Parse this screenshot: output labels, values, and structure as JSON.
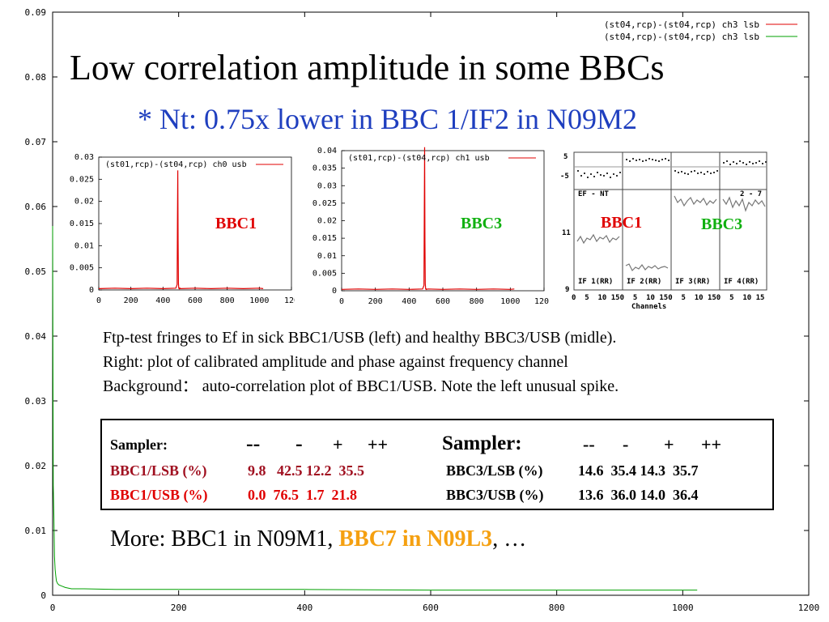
{
  "chart_data": [
    {
      "type": "line",
      "role": "background",
      "xlim": [
        0,
        1200
      ],
      "ylim": [
        0,
        0.09
      ],
      "xticks": [
        "0",
        "200",
        "400",
        "600",
        "800",
        "1000",
        "1200"
      ],
      "yticks": [
        "0",
        "0.01",
        "0.02",
        "0.03",
        "0.04",
        "0.05",
        "0.06",
        "0.07",
        "0.08",
        "0.09"
      ],
      "series": [
        {
          "name": "(st04,rcp)-(st04,rcp) ch3 lsb",
          "color": "#e00000",
          "x": [],
          "y": []
        },
        {
          "name": "(st04,rcp)-(st04,rcp) ch3 lsb",
          "color": "#00a000",
          "x": [
            0,
            1,
            2,
            3,
            4,
            5,
            6,
            8,
            10,
            15,
            20,
            30,
            50,
            100,
            200,
            400,
            600,
            800,
            1000,
            1023
          ],
          "y": [
            0.057,
            0.017,
            0.012,
            0.006,
            0.004,
            0.003,
            0.0022,
            0.0018,
            0.0016,
            0.0014,
            0.0012,
            0.001,
            0.001,
            0.0009,
            0.0009,
            0.0009,
            0.0008,
            0.0008,
            0.0008,
            0.0008
          ]
        }
      ]
    },
    {
      "type": "line",
      "role": "inset-left",
      "legend": "(st01,rcp)-(st04,rcp) ch0 usb",
      "color": "#e00000",
      "xlim": [
        0,
        1200
      ],
      "ylim": [
        0,
        0.03
      ],
      "xticks": [
        "0",
        "200",
        "400",
        "600",
        "800",
        "1000",
        "120"
      ],
      "yticks": [
        "0",
        "0.005",
        "0.01",
        "0.015",
        "0.02",
        "0.025",
        "0.03"
      ],
      "x": [
        0,
        100,
        200,
        300,
        400,
        480,
        488,
        490,
        492,
        494,
        496,
        498,
        500,
        502,
        504,
        506,
        510,
        600,
        700,
        800,
        900,
        1000,
        1024
      ],
      "y": [
        0.0003,
        0.0004,
        0.0003,
        0.0004,
        0.0003,
        0.0004,
        0.0012,
        0.016,
        0.027,
        0.011,
        0.0015,
        0.0004,
        0.0003,
        0.0004,
        0.0003,
        0.0004,
        0.0003,
        0.0004,
        0.0003,
        0.0004,
        0.0003,
        0.0004,
        0.0003
      ]
    },
    {
      "type": "line",
      "role": "inset-mid",
      "legend": "(st01,rcp)-(st04,rcp) ch1 usb",
      "color": "#e00000",
      "xlim": [
        0,
        1200
      ],
      "ylim": [
        0,
        0.04
      ],
      "xticks": [
        "0",
        "200",
        "400",
        "600",
        "800",
        "1000",
        "1200"
      ],
      "yticks": [
        "0",
        "0.005",
        "0.01",
        "0.015",
        "0.02",
        "0.025",
        "0.03",
        "0.035",
        "0.04"
      ],
      "x": [
        0,
        100,
        200,
        300,
        400,
        480,
        488,
        490,
        492,
        494,
        496,
        498,
        500,
        502,
        504,
        510,
        600,
        700,
        800,
        900,
        1000,
        1024
      ],
      "y": [
        0.0004,
        0.0005,
        0.0004,
        0.0005,
        0.0004,
        0.0005,
        0.0015,
        0.022,
        0.041,
        0.014,
        0.002,
        0.0005,
        0.0004,
        0.0005,
        0.0004,
        0.0005,
        0.0004,
        0.0005,
        0.0004,
        0.0005,
        0.0004,
        0.0005
      ]
    }
  ],
  "title": "Low correlation amplitude in some BBCs",
  "subtitle": "* Nt: 0.75x lower in BBC 1/IF2 in N09M2",
  "inset_right": {
    "panel_label_left": "EF - NT",
    "panel_label_right": "2 - 7",
    "ytick_top": [
      "5",
      "-5"
    ],
    "ytick_bottom": [
      "11",
      "9"
    ],
    "if_labels": [
      "IF 1(RR)",
      "IF 2(RR)",
      "IF 3(RR)",
      "IF 4(RR)"
    ],
    "xticks": "0  5  10 150  5  10 150  5  10 150  5  10 15",
    "xlabel": "Channels"
  },
  "tags": {
    "left_bbc1": "BBC1",
    "mid_bbc3": "BBC3",
    "right_bbc1": "BBC1",
    "right_bbc3": "BBC3"
  },
  "caption": {
    "line1": "Ftp-test fringes to Ef in sick BBC1/USB (left) and healthy BBC3/USB (midle).",
    "line2": "Right: plot of calibrated amplitude and phase against frequency channel",
    "line3": "Background： auto-correlation plot of BBC1/USB. Note the left unusual spike."
  },
  "sampler": {
    "left_header": "Sampler:",
    "left_cols": [
      "--",
      "-",
      "+",
      "++"
    ],
    "right_header": "Sampler:",
    "right_cols": [
      "--",
      "-",
      "+",
      "++"
    ],
    "left_rows": [
      {
        "label": "BBC1/LSB (%)",
        "values": "9.8   42.5 12.2  35.5"
      },
      {
        "label": "BBC1/USB (%)",
        "values": "0.0  76.5  1.7  21.8"
      }
    ],
    "right_rows": [
      {
        "label": "BBC3/LSB (%)",
        "values": "14.6  35.4 14.3  35.7"
      },
      {
        "label": "BBC3/USB (%)",
        "values": "13.6  36.0 14.0  36.4"
      }
    ]
  },
  "more": {
    "prefix": "More: BBC1 in N09M1, ",
    "highlight": "BBC7 in N09L3",
    "suffix": ", …"
  },
  "colors": {
    "red_line": "#e00000",
    "green_line": "#00a000",
    "subtitle_blue": "#1f3fbf",
    "tag_red": "#e00000",
    "tag_green": "#10b010",
    "lsb_darkred": "#a01020",
    "usb_red": "#e00000",
    "highlight_orange": "#f5a010"
  }
}
